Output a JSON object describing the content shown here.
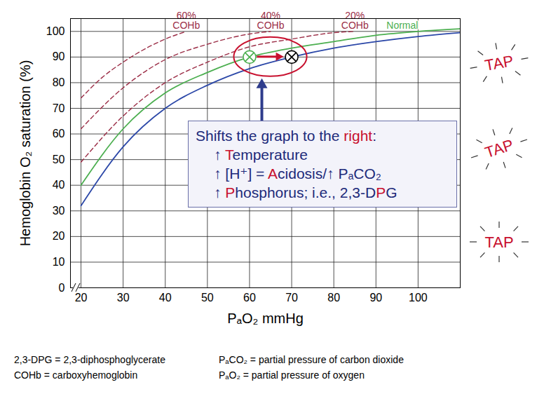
{
  "chart_data": {
    "type": "line",
    "x_label": "PₐO₂ mmHg",
    "y_label": "Hemoglobin O₂ saturation (%)",
    "xlim": [
      17.5,
      110
    ],
    "xticks": [
      20,
      30,
      40,
      50,
      60,
      70,
      80,
      90,
      100
    ],
    "ylim": [
      0,
      105
    ],
    "yticks": [
      0,
      10,
      20,
      30,
      40,
      50,
      60,
      70,
      80,
      90,
      100
    ],
    "grid": true,
    "series": [
      {
        "name": "60% COHb",
        "color": "#9b2d46",
        "line_style": "dashed",
        "x": [
          20,
          25,
          30,
          35,
          40,
          45
        ],
        "values": [
          74,
          82,
          88,
          93,
          97,
          100
        ]
      },
      {
        "name": "40% COHb",
        "color": "#9b2d46",
        "line_style": "dashed",
        "x": [
          20,
          30,
          40,
          50,
          60,
          65
        ],
        "values": [
          62,
          78,
          89,
          95,
          99,
          100
        ]
      },
      {
        "name": "20% COHb",
        "color": "#9b2d46",
        "line_style": "dashed",
        "x": [
          20,
          30,
          40,
          50,
          60,
          70,
          80,
          85
        ],
        "values": [
          49,
          67,
          80,
          88,
          94,
          97,
          99.5,
          100
        ]
      },
      {
        "name": "Normal",
        "color": "#4caf50",
        "line_style": "solid",
        "x": [
          20,
          30,
          40,
          50,
          60,
          70,
          80,
          90,
          100,
          110
        ],
        "values": [
          40,
          62,
          76,
          84,
          90,
          93.5,
          96,
          98.5,
          100,
          101
        ]
      },
      {
        "color": "#2c48a8",
        "line_style": "solid",
        "x": [
          20,
          30,
          40,
          50,
          60,
          70,
          80,
          90,
          100,
          110
        ],
        "values": [
          32,
          55,
          70,
          79,
          85.5,
          90,
          93.5,
          96,
          98,
          99.5
        ]
      }
    ],
    "markers": [
      {
        "x": 60,
        "y": 90,
        "color": "#4caf50",
        "marker": "x"
      },
      {
        "x": 70,
        "y": 90,
        "color": "#000000",
        "marker": "x"
      }
    ],
    "annotation": {
      "color": "#1d2a7a",
      "title": [
        {
          "text": "Shifts the graph to the "
        },
        {
          "text": "right",
          "color": "#c8102e"
        },
        {
          "text": ":"
        }
      ],
      "lines": [
        [
          {
            "text": "↑ "
          },
          {
            "text": "T",
            "color": "#c8102e"
          },
          {
            "text": "emperature"
          }
        ],
        [
          {
            "text": "↑ [H⁺] = "
          },
          {
            "text": "A",
            "color": "#c8102e"
          },
          {
            "text": "cidosis/↑ PₐCO₂"
          }
        ],
        [
          {
            "text": "↑ "
          },
          {
            "text": "P",
            "color": "#c8102e"
          },
          {
            "text": "hosphorus; i.e., 2,3-D"
          },
          {
            "text": "P",
            "color": "#c8102e"
          },
          {
            "text": "G"
          }
        ]
      ]
    },
    "callouts": {
      "color": "#c8102e",
      "texts": [
        "TAP",
        "TAP",
        "TAP"
      ]
    },
    "footnotes": [
      [
        "2,3-DPG = 2,3-diphosphoglycerate",
        "COHb = carboxyhemoglobin"
      ],
      [
        "PₐCO₂ = partial pressure of carbon dioxide",
        "PₐO₂ = partial pressure of oxygen"
      ]
    ]
  }
}
